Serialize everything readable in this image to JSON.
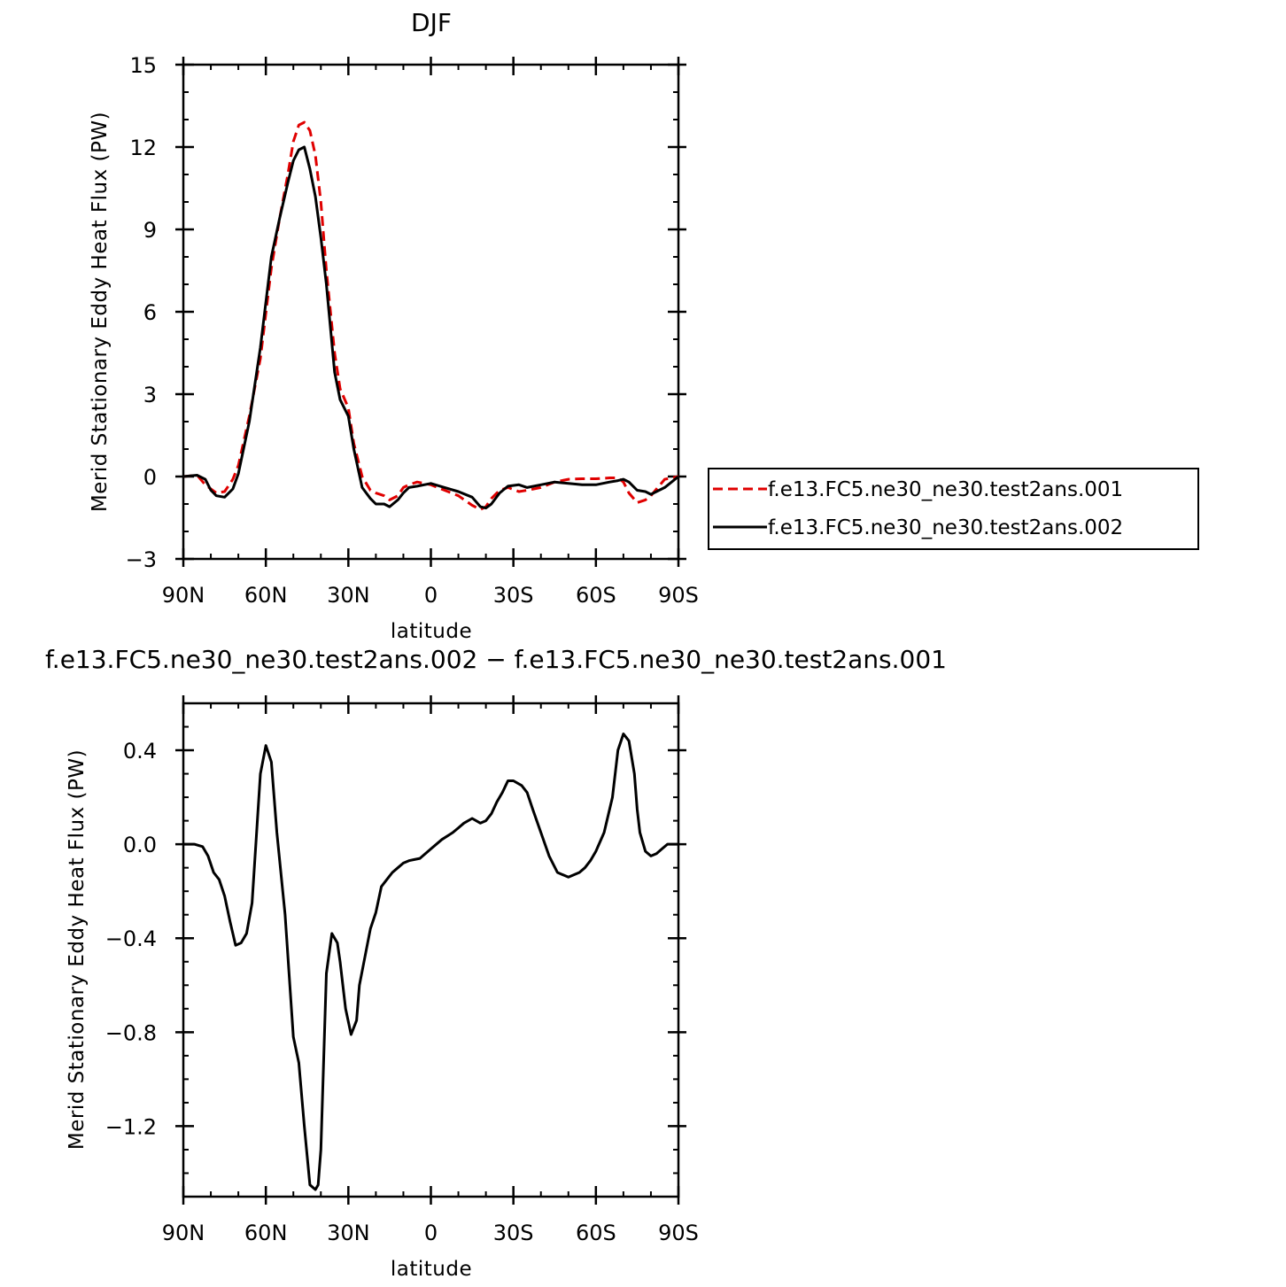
{
  "chart_data": [
    {
      "type": "line",
      "title": "DJF",
      "xlabel": "latitude",
      "ylabel": "Merid Stationary Eddy Heat Flux (PW)",
      "xlim": [
        90,
        -90
      ],
      "ylim": [
        -3,
        15
      ],
      "x_ticks": [
        90,
        60,
        30,
        0,
        -30,
        -60,
        -90
      ],
      "x_tick_labels": [
        "90N",
        "60N",
        "30N",
        "0",
        "30S",
        "60S",
        "90S"
      ],
      "y_ticks": [
        -3,
        0,
        3,
        6,
        9,
        12,
        15
      ],
      "y_tick_labels": [
        "−3",
        "0",
        "3",
        "6",
        "9",
        "12",
        "15"
      ],
      "legend_position": "right",
      "series": [
        {
          "name": "f.e13.FC5.ne30_ne30.test2ans.001",
          "color": "#e00000",
          "dash": "dashed",
          "x": [
            90,
            85,
            82,
            78,
            75,
            72,
            70,
            66,
            62,
            58,
            55,
            52,
            50,
            48,
            46,
            44,
            42,
            40,
            38,
            35,
            33,
            30,
            28,
            25,
            22,
            20,
            17,
            15,
            12,
            10,
            8,
            5,
            0,
            -5,
            -10,
            -15,
            -18,
            -20,
            -22,
            -25,
            -28,
            -32,
            -35,
            -40,
            -45,
            -50,
            -55,
            -60,
            -65,
            -68,
            -70,
            -72,
            -75,
            -78,
            -80,
            -85,
            -90
          ],
          "y": [
            0,
            0.05,
            -0.3,
            -0.6,
            -0.55,
            -0.1,
            0.4,
            2.2,
            4.3,
            7.6,
            9.4,
            11.0,
            12.2,
            12.8,
            12.9,
            12.6,
            11.7,
            10.0,
            7.5,
            4.5,
            3.2,
            2.5,
            1.2,
            0.0,
            -0.5,
            -0.6,
            -0.7,
            -0.85,
            -0.7,
            -0.4,
            -0.3,
            -0.2,
            -0.3,
            -0.5,
            -0.7,
            -1.05,
            -1.2,
            -1.1,
            -0.8,
            -0.5,
            -0.4,
            -0.55,
            -0.5,
            -0.4,
            -0.2,
            -0.1,
            -0.08,
            -0.08,
            -0.05,
            -0.05,
            -0.2,
            -0.6,
            -0.95,
            -0.85,
            -0.7,
            -0.1,
            0
          ]
        },
        {
          "name": "f.e13.FC5.ne30_ne30.test2ans.002",
          "color": "#000000",
          "dash": "solid",
          "x": [
            90,
            85,
            82,
            80,
            78,
            75,
            72,
            70,
            66,
            62,
            58,
            55,
            52,
            50,
            48,
            46,
            44,
            42,
            40,
            38,
            35,
            33,
            30,
            28,
            25,
            22,
            20,
            17,
            15,
            12,
            10,
            8,
            5,
            0,
            -5,
            -10,
            -15,
            -18,
            -20,
            -22,
            -25,
            -28,
            -32,
            -35,
            -40,
            -45,
            -50,
            -55,
            -60,
            -65,
            -68,
            -70,
            -72,
            -75,
            -78,
            -80,
            -85,
            -90
          ],
          "y": [
            0,
            0.05,
            -0.1,
            -0.5,
            -0.7,
            -0.75,
            -0.45,
            0.1,
            2.0,
            4.7,
            8.0,
            9.4,
            10.7,
            11.5,
            11.9,
            12.0,
            11.2,
            10.2,
            8.7,
            7.0,
            3.8,
            2.8,
            2.2,
            1.0,
            -0.4,
            -0.8,
            -1.0,
            -1.0,
            -1.1,
            -0.85,
            -0.6,
            -0.4,
            -0.35,
            -0.25,
            -0.4,
            -0.55,
            -0.75,
            -1.1,
            -1.15,
            -1.0,
            -0.6,
            -0.35,
            -0.3,
            -0.4,
            -0.3,
            -0.2,
            -0.25,
            -0.3,
            -0.3,
            -0.2,
            -0.15,
            -0.1,
            -0.2,
            -0.5,
            -0.55,
            -0.65,
            -0.4,
            0
          ]
        }
      ]
    },
    {
      "type": "line",
      "title": "f.e13.FC5.ne30_ne30.test2ans.002 − f.e13.FC5.ne30_ne30.test2ans.001",
      "xlabel": "latitude",
      "ylabel": "Merid Stationary Eddy Heat Flux (PW)",
      "xlim": [
        90,
        -90
      ],
      "ylim": [
        -1.5,
        0.6
      ],
      "x_ticks": [
        90,
        60,
        30,
        0,
        -30,
        -60,
        -90
      ],
      "x_tick_labels": [
        "90N",
        "60N",
        "30N",
        "0",
        "30S",
        "60S",
        "90S"
      ],
      "y_ticks": [
        -1.2,
        -0.8,
        -0.4,
        0.0,
        0.4
      ],
      "y_tick_labels": [
        "−1.2",
        "−0.8",
        "−0.4",
        "0.0",
        "0.4"
      ],
      "series": [
        {
          "color": "#000000",
          "dash": "solid",
          "x": [
            90,
            86,
            83,
            81,
            79,
            77,
            75,
            73,
            71,
            69,
            67,
            65,
            62,
            60,
            58,
            56,
            53,
            50,
            48,
            46,
            44,
            42,
            41,
            40,
            38,
            36,
            34,
            33,
            31,
            29,
            27,
            26,
            24,
            22,
            20,
            18,
            16,
            14,
            12,
            10,
            8,
            6,
            4,
            0,
            -4,
            -8,
            -10,
            -12,
            -15,
            -18,
            -20,
            -22,
            -24,
            -26,
            -28,
            -30,
            -33,
            -35,
            -37,
            -40,
            -43,
            -46,
            -50,
            -54,
            -56,
            -58,
            -60,
            -63,
            -66,
            -68,
            -70,
            -72,
            -74,
            -75,
            -76,
            -78,
            -80,
            -82,
            -84,
            -86,
            -88,
            -90
          ],
          "y": [
            0,
            0,
            -0.01,
            -0.05,
            -0.12,
            -0.15,
            -0.22,
            -0.33,
            -0.43,
            -0.42,
            -0.38,
            -0.25,
            0.3,
            0.42,
            0.35,
            0.05,
            -0.3,
            -0.82,
            -0.93,
            -1.2,
            -1.45,
            -1.47,
            -1.45,
            -1.3,
            -0.55,
            -0.38,
            -0.42,
            -0.5,
            -0.7,
            -0.81,
            -0.75,
            -0.6,
            -0.48,
            -0.36,
            -0.29,
            -0.18,
            -0.15,
            -0.12,
            -0.1,
            -0.08,
            -0.07,
            -0.065,
            -0.06,
            -0.02,
            0.02,
            0.05,
            0.07,
            0.09,
            0.11,
            0.09,
            0.1,
            0.13,
            0.18,
            0.22,
            0.27,
            0.27,
            0.25,
            0.22,
            0.15,
            0.05,
            -0.05,
            -0.12,
            -0.14,
            -0.12,
            -0.1,
            -0.07,
            -0.03,
            0.05,
            0.2,
            0.4,
            0.47,
            0.44,
            0.3,
            0.15,
            0.05,
            -0.03,
            -0.05,
            -0.04,
            -0.02,
            0.0,
            0.0,
            0.0
          ]
        }
      ]
    }
  ]
}
